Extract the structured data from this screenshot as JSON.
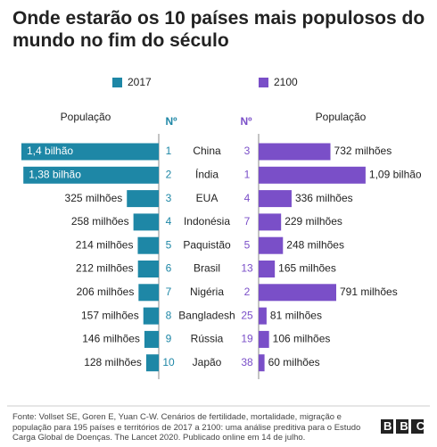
{
  "chart_data": {
    "type": "butterfly",
    "title": "Onde estarão os 10 países mais populosos do mundo no fim do século",
    "categories": [
      "China",
      "Índia",
      "EUA",
      "Indonésia",
      "Paquistão",
      "Brasil",
      "Nigéria",
      "Bangladesh",
      "Rússia",
      "Japão"
    ],
    "series": [
      {
        "name": "2017",
        "color": "#1e87a6",
        "header": "População",
        "rank_header": "Nº",
        "ranks": [
          1,
          2,
          3,
          4,
          5,
          6,
          7,
          8,
          9,
          10
        ],
        "values": [
          1400,
          1380,
          325,
          258,
          214,
          212,
          206,
          157,
          146,
          128
        ],
        "value_labels": [
          "1,4 bilhão",
          "1,38 bilhão",
          "325 milhões",
          "258 milhões",
          "214 milhões",
          "212 milhões",
          "206 milhões",
          "157 milhões",
          "146 milhões",
          "128 milhões"
        ]
      },
      {
        "name": "2100",
        "color": "#7a4fc8",
        "header": "População",
        "rank_header": "Nº",
        "ranks": [
          3,
          1,
          4,
          7,
          5,
          13,
          2,
          25,
          19,
          38
        ],
        "values": [
          732,
          1090,
          336,
          229,
          248,
          165,
          791,
          81,
          106,
          60
        ],
        "value_labels": [
          "732 milhões",
          "1,09 bilhão",
          "336 milhões",
          "229 milhões",
          "248 milhões",
          "165 milhões",
          "791 milhões",
          "81 milhões",
          "106 milhões",
          "60 milhões"
        ]
      }
    ],
    "source": "Fonte: Vollset SE, Goren E, Yuan C-W. Cenários de fertilidade, mortalidade, migração e população para 195 países e territórios de 2017 a 2100: uma análise preditiva para o Estudo Carga Global de Doenças. The Lancet 2020. Publicado online em 14 de julho.",
    "logo": "BBC"
  }
}
